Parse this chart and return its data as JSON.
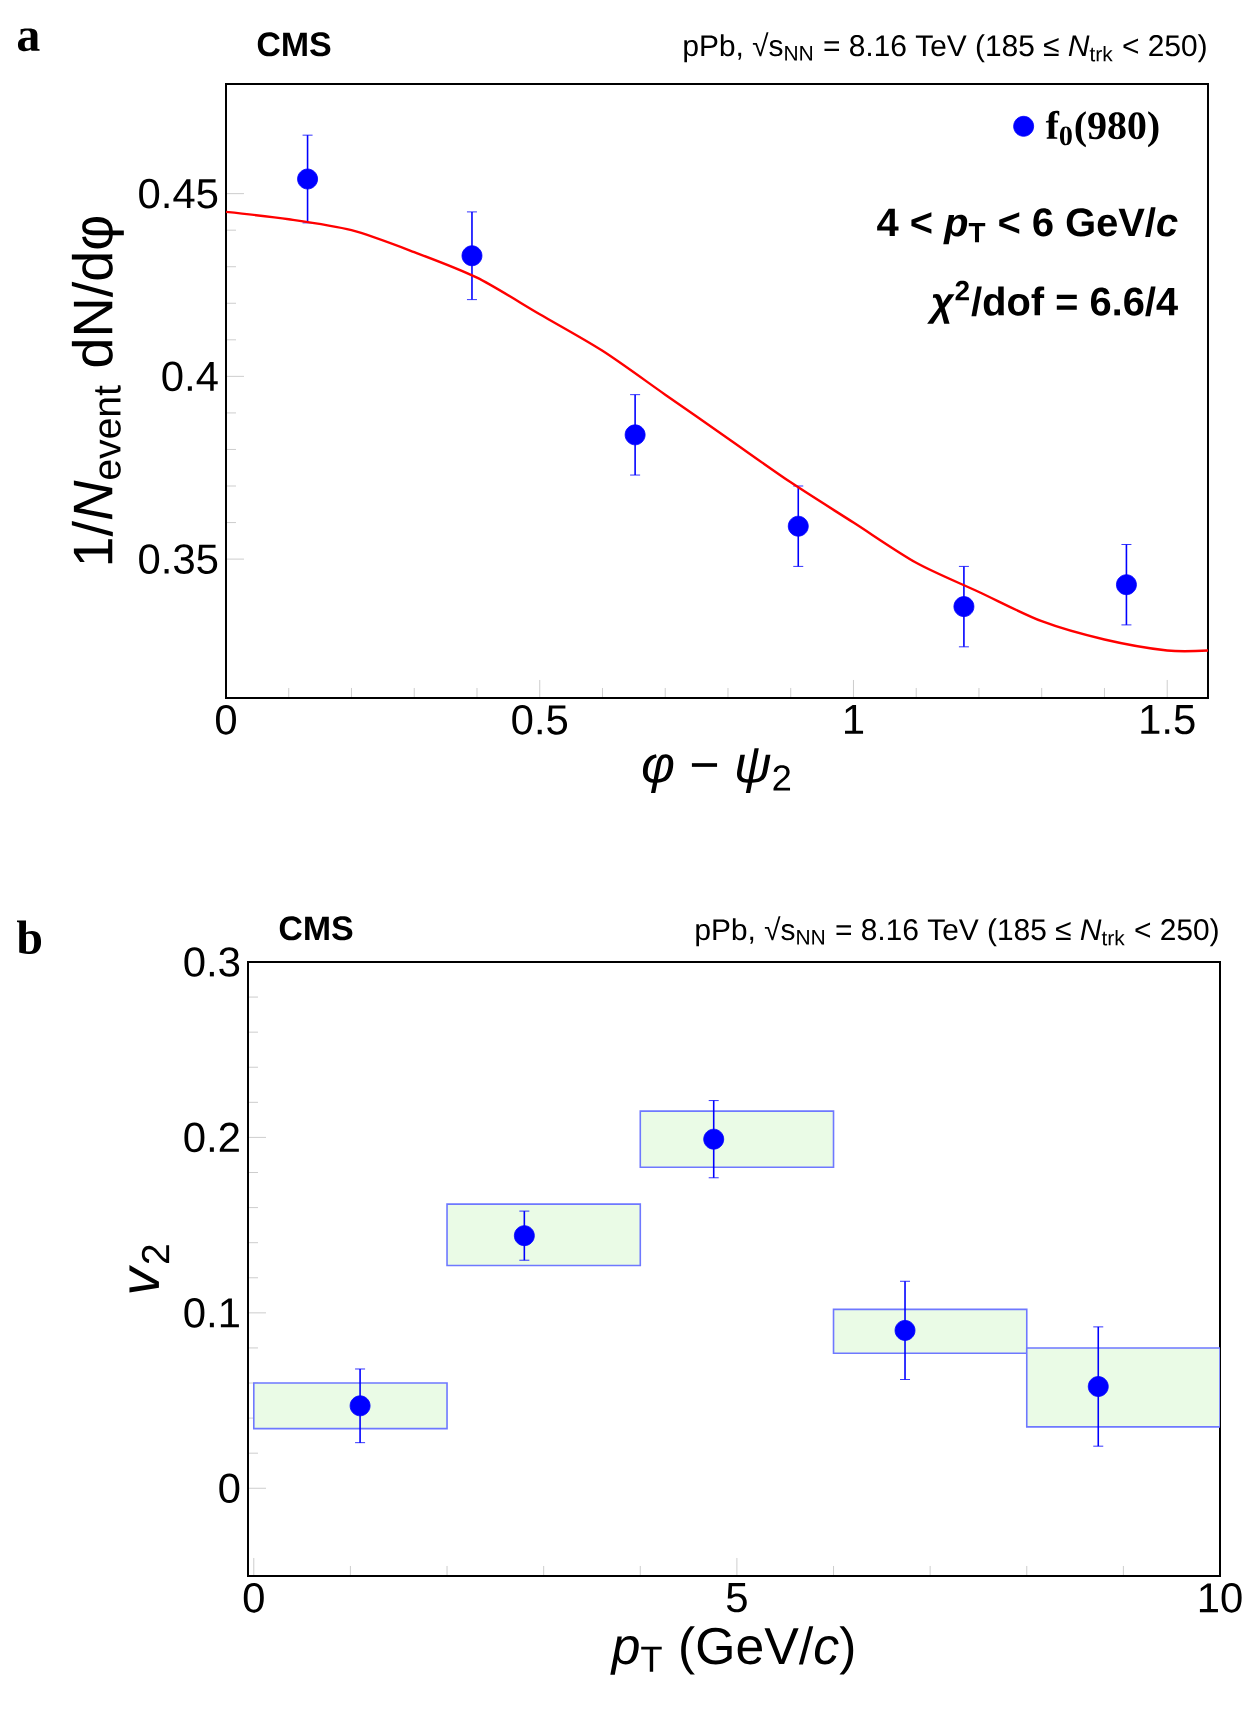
{
  "chart_data": [
    {
      "type": "scatter",
      "title": "CMS",
      "subtitle": "pPb, √s$_{NN}$ = 8.16 TeV (185 ≤ *N*$_{trk}$ < 250)",
      "xlabel": "*φ* − *ψ*$_{2}$",
      "ylabel": "1/*N*$_{event}$ dN/dφ",
      "annotations": [
        "a",
        "4 < *p*$_{T}$ < 6 GeV/*c*",
        "*χ*$^{2}$/dof = 6.6/4"
      ],
      "xlim": [
        0,
        1.565
      ],
      "ylim": [
        0.312,
        0.48
      ],
      "xticks": [
        0,
        0.5,
        1,
        1.5
      ],
      "yticks": [
        0.35,
        0.4,
        0.45
      ],
      "legend": "top right",
      "series": [
        {
          "name": "f$_{0}$(980)",
          "color": "#0000ff",
          "x": [
            0.13,
            0.392,
            0.652,
            0.912,
            1.176,
            1.435
          ],
          "values": [
            0.454,
            0.433,
            0.384,
            0.359,
            0.337,
            0.343
          ],
          "errors": [
            0.012,
            0.012,
            0.011,
            0.011,
            0.011,
            0.011
          ]
        },
        {
          "type": "line",
          "color": "#ff0000",
          "x": [
            0,
            0.1,
            0.2,
            0.3,
            0.4,
            0.5,
            0.6,
            0.7,
            0.8,
            0.9,
            1.0,
            1.1,
            1.2,
            1.3,
            1.4,
            1.5,
            1.565
          ],
          "values": [
            0.445,
            0.443,
            0.44,
            0.434,
            0.427,
            0.417,
            0.407,
            0.395,
            0.383,
            0.371,
            0.36,
            0.349,
            0.341,
            0.333,
            0.328,
            0.325,
            0.325
          ]
        }
      ]
    },
    {
      "type": "scatter",
      "title": "CMS",
      "subtitle": "pPb, √s$_{NN}$ = 8.16 TeV (185 ≤ *N*$_{trk}$ < 250)",
      "xlabel": "*p*$_{T}$ (GeV/*c*)",
      "ylabel": "*v*$_{2}$",
      "annotations": [
        "b"
      ],
      "xlim": [
        -0.06,
        10
      ],
      "ylim": [
        -0.05,
        0.3
      ],
      "xticks": [
        0,
        5,
        10
      ],
      "yticks": [
        0,
        0.1,
        0.2,
        0.3
      ],
      "series": [
        {
          "type": "bar",
          "color": "#eafbe6",
          "x": [
            1,
            3,
            5,
            7,
            9
          ],
          "base": [
            0.034,
            0.127,
            0.183,
            0.077,
            0.035
          ],
          "values": [
            0.026,
            0.035,
            0.032,
            0.025,
            0.045
          ]
        },
        {
          "color": "#0000ff",
          "x": [
            1.1,
            2.8,
            4.76,
            6.74,
            8.74
          ],
          "values": [
            0.047,
            0.144,
            0.199,
            0.09,
            0.058
          ],
          "errors": [
            0.021,
            0.014,
            0.022,
            0.028,
            0.034
          ]
        }
      ]
    }
  ]
}
